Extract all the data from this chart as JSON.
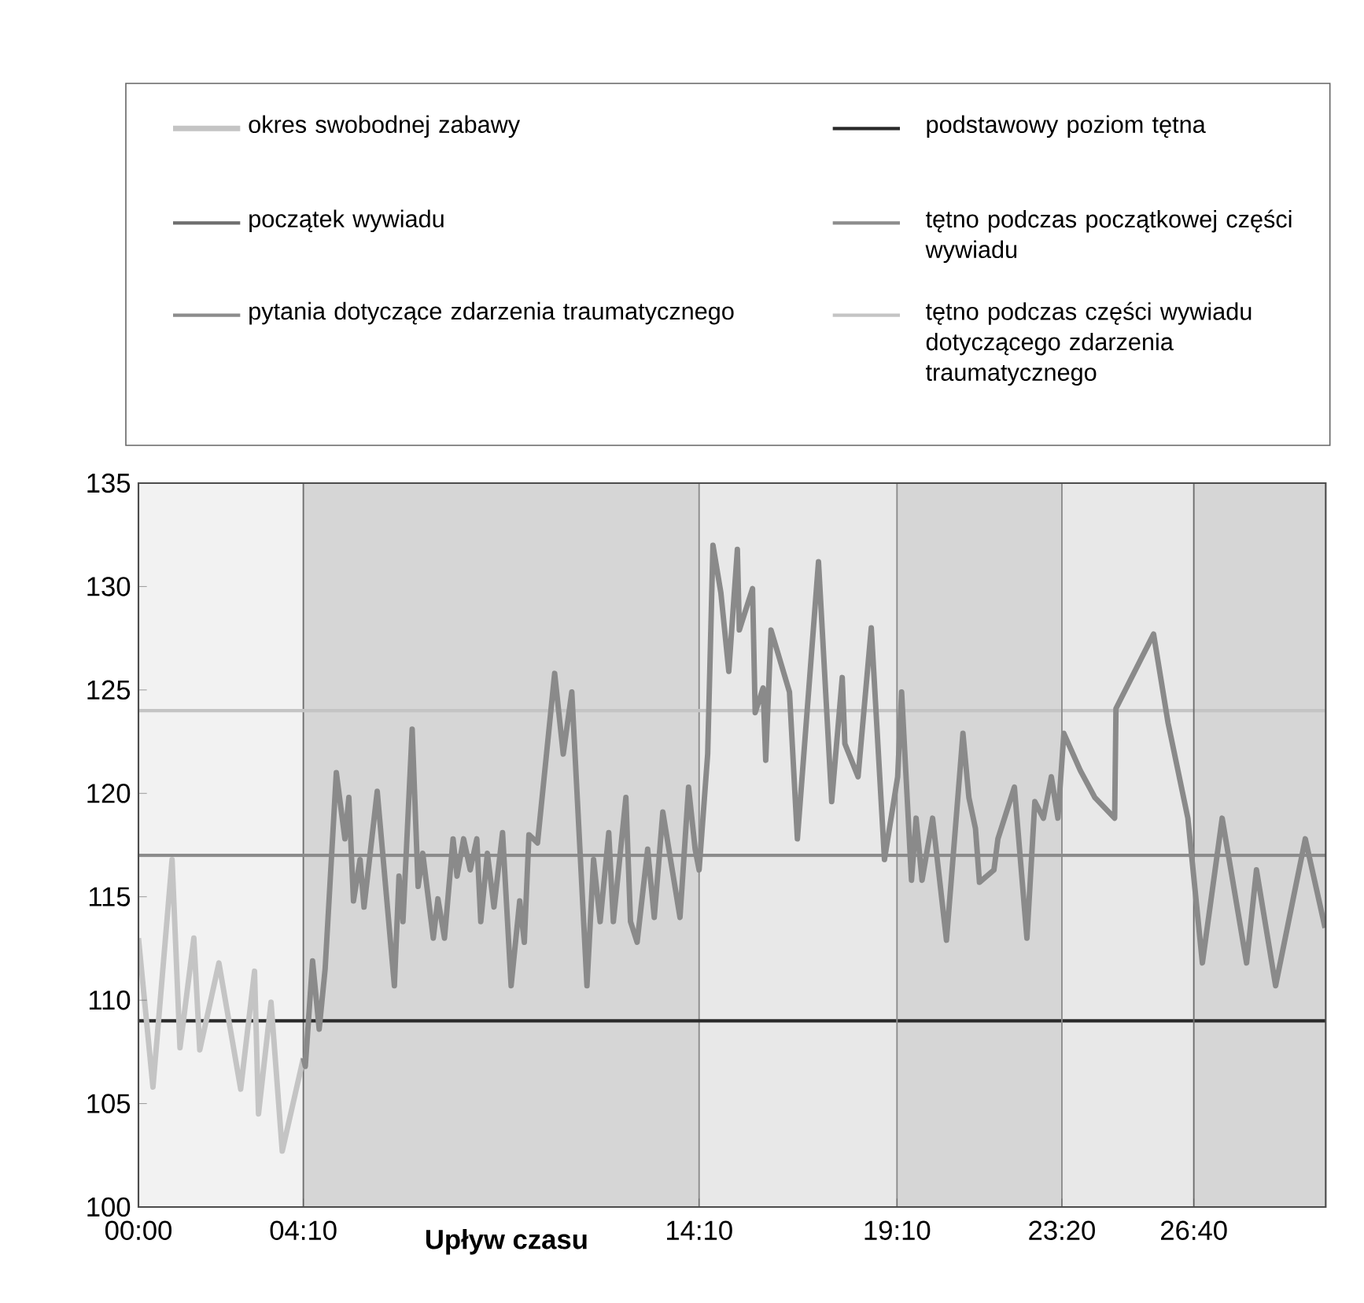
{
  "chart_data": {
    "type": "line",
    "xlabel": "Upływ czasu",
    "xlim": [
      0,
      1800
    ],
    "ylim": [
      100,
      135
    ],
    "xticks": [
      {
        "value": 0,
        "label": "00:00"
      },
      {
        "value": 250,
        "label": "04:10"
      },
      {
        "value": 850,
        "label": "14:10"
      },
      {
        "value": 1150,
        "label": "19:10"
      },
      {
        "value": 1400,
        "label": "23:20"
      },
      {
        "value": 1600,
        "label": "26:40"
      }
    ],
    "yticks": [
      100,
      105,
      110,
      115,
      120,
      125,
      130,
      135
    ],
    "grid": false,
    "legend": "top",
    "marker": "none",
    "line_style": "solid",
    "series": [
      {
        "name": "okres swobodnej zabawy",
        "color": "#c4c4c4",
        "x": [
          0,
          22,
          51,
          63,
          84,
          93,
          122,
          155,
          176,
          182,
          201,
          218,
          250
        ],
        "values": [
          113.0,
          105.8,
          116.8,
          107.7,
          113.0,
          107.6,
          111.8,
          105.7,
          111.4,
          104.5,
          109.9,
          102.7,
          107.2
        ]
      },
      {
        "color": "#8a8a8a",
        "x": [
          250,
          253,
          264,
          274,
          283,
          300,
          313,
          319,
          326,
          336,
          342,
          362,
          388,
          395,
          401,
          415,
          424,
          431,
          447,
          454,
          464,
          477,
          483,
          493,
          503,
          513,
          519,
          529,
          539,
          552,
          565,
          578,
          585,
          592,
          605,
          631,
          644,
          657,
          680,
          690,
          700,
          713,
          720,
          739,
          746,
          756,
          772,
          782,
          795,
          821,
          834,
          844,
          850,
          863,
          871,
          883,
          895,
          908,
          911,
          931,
          935,
          947,
          951,
          959,
          987,
          999,
          1031,
          1051,
          1067,
          1071,
          1091,
          1111,
          1131,
          1151,
          1157,
          1172,
          1179,
          1188,
          1204,
          1225,
          1250,
          1259,
          1269,
          1275,
          1297,
          1303,
          1328,
          1347,
          1359,
          1372,
          1384,
          1394,
          1403,
          1428,
          1450,
          1480,
          1482,
          1539,
          1561,
          1591,
          1613,
          1643,
          1680,
          1695,
          1724,
          1769,
          1799
        ],
        "values": [
          107.2,
          106.8,
          111.9,
          108.6,
          111.5,
          121.0,
          117.8,
          119.8,
          114.8,
          116.8,
          114.5,
          120.1,
          110.7,
          116.0,
          113.8,
          123.1,
          115.5,
          117.1,
          113.0,
          114.9,
          113.0,
          117.8,
          116.0,
          117.8,
          116.3,
          117.8,
          113.8,
          117.1,
          114.5,
          118.1,
          110.7,
          114.8,
          112.8,
          118.0,
          117.6,
          125.8,
          121.9,
          124.9,
          110.7,
          116.8,
          113.8,
          118.1,
          113.8,
          119.8,
          113.8,
          112.8,
          117.3,
          114.0,
          119.1,
          114.0,
          120.3,
          117.3,
          116.3,
          121.9,
          132.0,
          129.7,
          125.9,
          131.8,
          127.9,
          129.9,
          123.9,
          125.1,
          121.6,
          127.9,
          124.9,
          117.8,
          131.2,
          119.6,
          125.6,
          122.4,
          120.8,
          128.0,
          116.8,
          120.8,
          124.9,
          115.8,
          118.8,
          115.8,
          118.8,
          112.9,
          122.9,
          119.8,
          118.3,
          115.7,
          116.3,
          117.8,
          120.3,
          113.0,
          119.6,
          118.8,
          120.8,
          118.8,
          122.9,
          121.1,
          119.8,
          118.8,
          124.1,
          127.7,
          123.4,
          118.8,
          111.8,
          118.8,
          111.8,
          116.3,
          110.7,
          117.8,
          113.5
        ]
      }
    ],
    "ref_lines": [
      {
        "axis": "x",
        "value": 250,
        "label": "początek wywiadu",
        "color": "#6e6e6e"
      },
      {
        "axis": "x",
        "value": 850,
        "label": "pytania dotyczące zdarzenia traumatycznego",
        "color": "#8c8c8c"
      },
      {
        "axis": "y",
        "value": 109,
        "label": "podstawowy poziom tętna",
        "color": "#2a2a2a"
      },
      {
        "axis": "y",
        "value": 117,
        "label": "tętno podczas początkowej części wywiadu",
        "color": "#8c8c8c"
      },
      {
        "axis": "y",
        "value": 124,
        "label": "tętno podczas części wywiadu dotyczącego zdarzenia traumatycznego",
        "color": "#c4c4c4"
      },
      {
        "axis": "x",
        "value": 1150,
        "color": "#8c8c8c"
      },
      {
        "axis": "x",
        "value": 1400,
        "color": "#8c8c8c"
      },
      {
        "axis": "x",
        "value": 1600,
        "color": "#6e6e6e"
      }
    ],
    "bands": [
      {
        "axis": "x",
        "from": 0,
        "to": 250,
        "color": "#f2f2f2"
      },
      {
        "axis": "x",
        "from": 250,
        "to": 850,
        "color": "#d6d6d6"
      },
      {
        "axis": "x",
        "from": 850,
        "to": 1150,
        "color": "#e8e8e8"
      },
      {
        "axis": "x",
        "from": 1150,
        "to": 1400,
        "color": "#d6d6d6"
      },
      {
        "axis": "x",
        "from": 1400,
        "to": 1600,
        "color": "#e8e8e8"
      },
      {
        "axis": "x",
        "from": 1600,
        "to": 1800,
        "color": "#d6d6d6"
      }
    ]
  }
}
